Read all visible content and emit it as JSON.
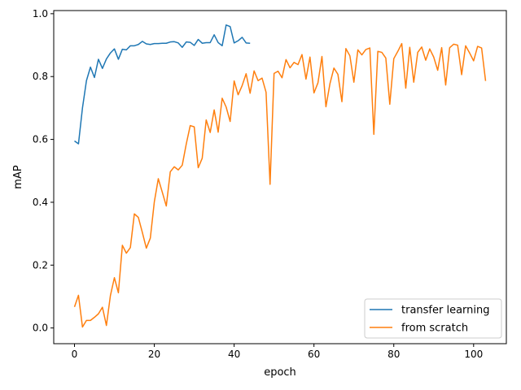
{
  "chart_data": {
    "type": "line",
    "title": "",
    "xlabel": "epoch",
    "ylabel": "mAP",
    "xlim": [
      -5.2,
      108.2
    ],
    "ylim": [
      -0.05,
      1.01
    ],
    "xticks": [
      0,
      20,
      40,
      60,
      80,
      100
    ],
    "yticks": [
      0.0,
      0.2,
      0.4,
      0.6,
      0.8,
      1.0
    ],
    "grid": false,
    "legend_position": "lower-right",
    "series": [
      {
        "name": "transfer learning",
        "color": "#1f77b4",
        "x": [
          0,
          1,
          2,
          3,
          4,
          5,
          6,
          7,
          8,
          9,
          10,
          11,
          12,
          13,
          14,
          15,
          16,
          17,
          18,
          19,
          20,
          21,
          22,
          23,
          24,
          25,
          26,
          27,
          28,
          29,
          30,
          31,
          32,
          33,
          34,
          35,
          36,
          37,
          38,
          39,
          40,
          41,
          42,
          43,
          44
        ],
        "y": [
          0.595,
          0.586,
          0.7,
          0.787,
          0.83,
          0.797,
          0.855,
          0.826,
          0.856,
          0.875,
          0.888,
          0.855,
          0.887,
          0.885,
          0.898,
          0.898,
          0.902,
          0.912,
          0.904,
          0.902,
          0.905,
          0.905,
          0.906,
          0.906,
          0.91,
          0.911,
          0.907,
          0.893,
          0.91,
          0.909,
          0.899,
          0.918,
          0.906,
          0.908,
          0.908,
          0.933,
          0.908,
          0.898,
          0.964,
          0.959,
          0.907,
          0.914,
          0.925,
          0.907,
          0.906
        ]
      },
      {
        "name": "from scratch",
        "color": "#ff7f0e",
        "x": [
          0,
          1,
          2,
          3,
          4,
          5,
          6,
          7,
          8,
          9,
          10,
          11,
          12,
          13,
          14,
          15,
          16,
          17,
          18,
          19,
          20,
          21,
          22,
          23,
          24,
          25,
          26,
          27,
          28,
          29,
          30,
          31,
          32,
          33,
          34,
          35,
          36,
          37,
          38,
          39,
          40,
          41,
          42,
          43,
          44,
          45,
          46,
          47,
          48,
          49,
          50,
          51,
          52,
          53,
          54,
          55,
          56,
          57,
          58,
          59,
          60,
          61,
          62,
          63,
          64,
          65,
          66,
          67,
          68,
          69,
          70,
          71,
          72,
          73,
          74,
          75,
          76,
          77,
          78,
          79,
          80,
          81,
          82,
          83,
          84,
          85,
          86,
          87,
          88,
          89,
          90,
          91,
          92,
          93,
          94,
          95,
          96,
          97,
          98,
          99,
          100,
          101,
          102,
          103
        ],
        "y": [
          0.067,
          0.104,
          0.003,
          0.024,
          0.024,
          0.034,
          0.045,
          0.066,
          0.008,
          0.103,
          0.16,
          0.112,
          0.263,
          0.238,
          0.256,
          0.363,
          0.352,
          0.304,
          0.254,
          0.286,
          0.401,
          0.475,
          0.432,
          0.388,
          0.497,
          0.513,
          0.503,
          0.518,
          0.585,
          0.644,
          0.64,
          0.51,
          0.54,
          0.662,
          0.622,
          0.694,
          0.623,
          0.731,
          0.703,
          0.657,
          0.786,
          0.742,
          0.771,
          0.809,
          0.747,
          0.818,
          0.787,
          0.795,
          0.75,
          0.457,
          0.81,
          0.817,
          0.796,
          0.854,
          0.828,
          0.845,
          0.838,
          0.87,
          0.792,
          0.862,
          0.748,
          0.78,
          0.864,
          0.704,
          0.777,
          0.827,
          0.807,
          0.72,
          0.889,
          0.866,
          0.782,
          0.885,
          0.869,
          0.886,
          0.891,
          0.616,
          0.88,
          0.877,
          0.859,
          0.712,
          0.857,
          0.88,
          0.905,
          0.763,
          0.893,
          0.782,
          0.877,
          0.894,
          0.852,
          0.888,
          0.862,
          0.82,
          0.892,
          0.773,
          0.892,
          0.903,
          0.9,
          0.806,
          0.898,
          0.875,
          0.85,
          0.896,
          0.891,
          0.786
        ]
      }
    ]
  }
}
